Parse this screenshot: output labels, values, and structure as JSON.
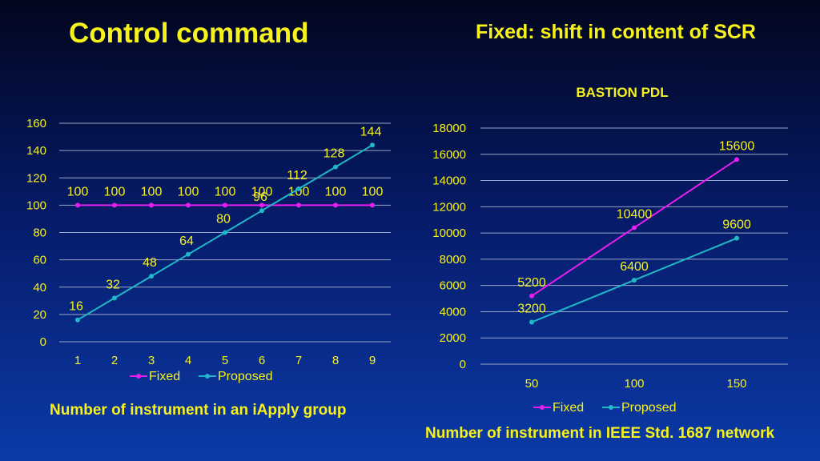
{
  "slide": {
    "left_title": "Control command",
    "right_title": "Fixed: shift in content of SCR",
    "left_xlabel": "Number of instrument in an iApply group",
    "right_xlabel": "Number of instrument in IEEE Std. 1687 network"
  },
  "colors": {
    "text": "#f7f21a",
    "fixed": "#e81ef0",
    "proposed": "#1fb8c8",
    "grid": "#9aa6c8"
  },
  "chart_data": [
    {
      "type": "line",
      "title": "",
      "xlabel": "Number of instrument in an iApply group",
      "ylabel": "",
      "categories": [
        "1",
        "2",
        "3",
        "4",
        "5",
        "6",
        "7",
        "8",
        "9"
      ],
      "ylim": [
        0,
        160
      ],
      "yticks": [
        "0",
        "20",
        "40",
        "60",
        "80",
        "100",
        "120",
        "140",
        "160"
      ],
      "grid": true,
      "legend": "bottom",
      "series": [
        {
          "name": "Fixed",
          "values": [
            100,
            100,
            100,
            100,
            100,
            100,
            100,
            100,
            100
          ]
        },
        {
          "name": "Proposed",
          "values": [
            16,
            32,
            48,
            64,
            80,
            96,
            112,
            128,
            144
          ]
        }
      ]
    },
    {
      "type": "line",
      "title": "BASTION PDL",
      "xlabel": "Number of instrument in IEEE Std. 1687 network",
      "ylabel": "",
      "categories": [
        "50",
        "100",
        "150"
      ],
      "ylim": [
        0,
        18000
      ],
      "yticks": [
        "0",
        "2000",
        "4000",
        "6000",
        "8000",
        "10000",
        "12000",
        "14000",
        "16000",
        "18000"
      ],
      "grid": true,
      "legend": "bottom",
      "series": [
        {
          "name": "Fixed",
          "values": [
            5200,
            10400,
            15600
          ]
        },
        {
          "name": "Proposed",
          "values": [
            3200,
            6400,
            9600
          ]
        }
      ]
    }
  ]
}
